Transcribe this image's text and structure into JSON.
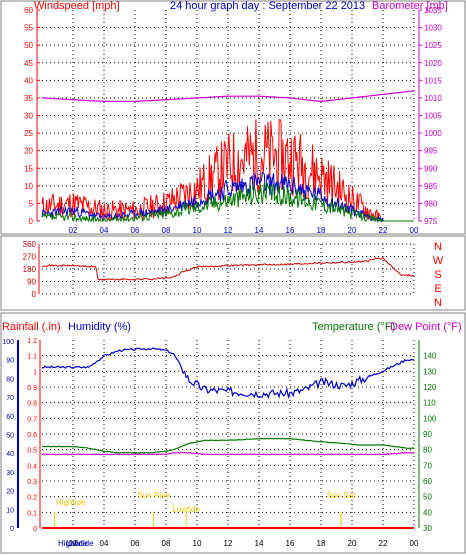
{
  "colors": {
    "red": "#ff0000",
    "dark_red": "#cc0000",
    "blue": "#0000cc",
    "dark_blue": "#0000aa",
    "green": "#007700",
    "magenta": "#cc00cc",
    "gold": "#e6c800",
    "frame": "#808080",
    "grid": "#000000"
  },
  "x_ticks": [
    "02",
    "04",
    "06",
    "08",
    "10",
    "12",
    "14",
    "16",
    "18",
    "20",
    "22",
    "00"
  ],
  "chart_data": [
    {
      "type": "line",
      "title": "24 hour graph day : September 22 2013",
      "ylabel_left": "Windspeed [mph]",
      "ylabel_right": "Barometer [mb]",
      "ylim_left": [
        0,
        60
      ],
      "ylim_right": [
        975,
        1035
      ],
      "y_ticks_left": [
        "0",
        "5",
        "10",
        "15",
        "20",
        "25",
        "30",
        "35",
        "40",
        "45",
        "50",
        "55",
        "60"
      ],
      "y_ticks_right": [
        "975",
        "980",
        "985",
        "990",
        "995",
        "1000",
        "1005",
        "1010",
        "1015",
        "1020",
        "1025",
        "1030",
        "1035"
      ],
      "x": [
        0,
        2,
        4,
        6,
        8,
        10,
        12,
        14,
        16,
        18,
        20,
        22,
        24
      ],
      "series": [
        {
          "name": "Windspeed [mph]",
          "color": "red",
          "axis": "left",
          "values": [
            4,
            5,
            3,
            3,
            5,
            9,
            16,
            19,
            18,
            13,
            6,
            0,
            0
          ]
        },
        {
          "name": "",
          "color": "blue",
          "axis": "left",
          "values": [
            2,
            3,
            1,
            2,
            3,
            6,
            9,
            11,
            10,
            7,
            3,
            0,
            0
          ]
        },
        {
          "name": "",
          "color": "green",
          "axis": "left",
          "values": [
            1,
            1,
            0,
            1,
            2,
            4,
            6,
            8,
            7,
            5,
            2,
            0,
            0
          ]
        },
        {
          "name": "Barometer [mb]",
          "color": "magenta",
          "axis": "right",
          "values": [
            1010,
            1009.5,
            1009,
            1009,
            1009.5,
            1010,
            1010.5,
            1010.5,
            1010,
            1009,
            1010,
            1011,
            1012
          ]
        }
      ]
    },
    {
      "type": "line",
      "ylim": [
        0,
        360
      ],
      "y_ticks": [
        "0",
        "90",
        "180",
        "270",
        "360"
      ],
      "compass": [
        "N",
        "W",
        "S",
        "E",
        "N"
      ],
      "x": [
        0,
        2,
        3.5,
        3.6,
        5,
        7,
        8,
        8.5,
        9,
        10,
        12,
        14,
        16,
        18,
        20,
        21,
        21.5,
        22,
        23.2,
        24
      ],
      "series": [
        {
          "name": "",
          "color": "dark_red",
          "values": [
            205,
            205,
            195,
            105,
            105,
            108,
            115,
            120,
            155,
            195,
            205,
            210,
            215,
            225,
            230,
            235,
            255,
            255,
            135,
            135
          ]
        }
      ]
    },
    {
      "type": "line",
      "ylabel_left_1": "Rainfall (.in)",
      "ylabel_left_2": "Humidity (%)",
      "ylabel_right_1": "Temperature (°F)",
      "ylabel_right_2": "Dew Point (°F)",
      "y_ticks_rain": [
        "0",
        "0.1",
        "0.2",
        "0.3",
        "0.4",
        "0.5",
        "0.6",
        "0.7",
        "0.8",
        "0.9",
        "1",
        "1.1",
        "1.2"
      ],
      "y_ticks_humidity": [
        "0",
        "10",
        "20",
        "30",
        "40",
        "50",
        "60",
        "70",
        "80",
        "90",
        "100"
      ],
      "y_ticks_temp": [
        "30",
        "40",
        "50",
        "60",
        "70",
        "80",
        "90",
        "100",
        "110",
        "120",
        "130",
        "140"
      ],
      "ylim_temp": [
        30,
        150
      ],
      "x": [
        0,
        2,
        3,
        4,
        5,
        7,
        8,
        8.5,
        9.5,
        10.5,
        12,
        14,
        16,
        17,
        18,
        19.5,
        20.5,
        22,
        23.5,
        24
      ],
      "series": [
        {
          "name": "Humidity (%)",
          "color": "blue",
          "axis": "humidity",
          "values": [
            86,
            86,
            86,
            92,
            95,
            96,
            95,
            93,
            79,
            74,
            73,
            72,
            72,
            74,
            78,
            76,
            79,
            84,
            90,
            90
          ]
        },
        {
          "name": "Temperature (°F)",
          "color": "green",
          "axis": "temp",
          "values": [
            82,
            82,
            81,
            79,
            78,
            78,
            79,
            80,
            84,
            86,
            86,
            87,
            87,
            86,
            85,
            84,
            83,
            83,
            81,
            81
          ]
        },
        {
          "name": "Dew Point (°F)",
          "color": "magenta",
          "axis": "temp",
          "values": [
            77,
            77,
            77,
            77,
            77,
            77,
            77,
            78,
            78,
            77,
            77,
            77,
            77,
            77,
            77,
            77,
            77,
            77,
            78,
            78
          ]
        }
      ],
      "markers": [
        {
          "label": "Hightide",
          "x": 0.8
        },
        {
          "label": "Sun Rise",
          "x": 7.2
        },
        {
          "label": "Lowtide",
          "x": 9.3
        },
        {
          "label": "Sun Set",
          "x": 19.3
        }
      ],
      "bottom_labels": [
        "Hightide",
        "Lowtide"
      ]
    }
  ]
}
